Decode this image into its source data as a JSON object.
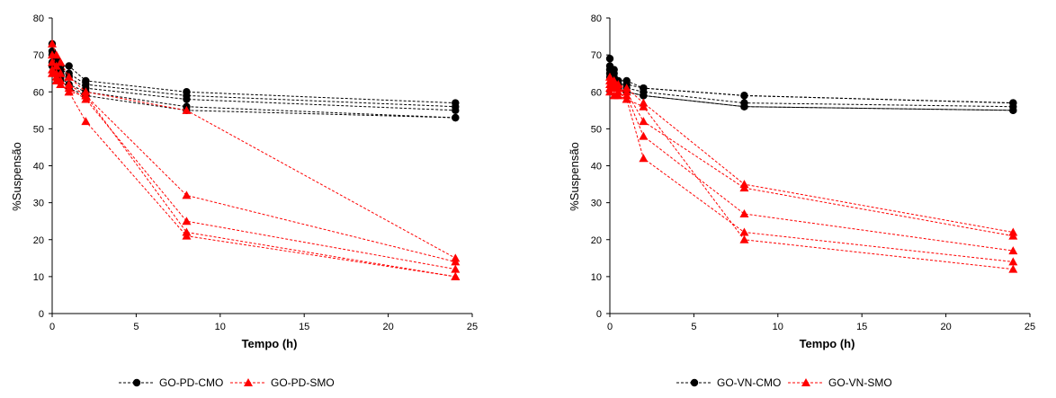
{
  "chart_data": [
    {
      "type": "scatter",
      "title": "",
      "xlabel": "Tempo (h)",
      "ylabel": "%Suspensão",
      "xlim": [
        0,
        25
      ],
      "ylim": [
        0,
        80
      ],
      "xticks": [
        "0",
        "5",
        "10",
        "15",
        "20",
        "25"
      ],
      "yticks": [
        "0",
        "10",
        "20",
        "30",
        "40",
        "50",
        "60",
        "70",
        "80"
      ],
      "grid": false,
      "legend_position": "bottom",
      "legend": [
        "GO-PD-CMO",
        "GO-PD-SMO"
      ],
      "series": [
        {
          "name": "GO-PD-CMO",
          "group": 0,
          "color": "#000000",
          "marker": "circle",
          "x": [
            0,
            0.25,
            0.5,
            1,
            2,
            8,
            24
          ],
          "y": [
            73,
            69,
            67,
            67,
            63,
            60,
            57
          ]
        },
        {
          "group": 0,
          "color": "#000000",
          "marker": "circle",
          "x": [
            0,
            0.25,
            0.5,
            1,
            2,
            8,
            24
          ],
          "y": [
            71,
            68,
            66,
            65,
            62,
            59,
            56
          ]
        },
        {
          "group": 0,
          "color": "#000000",
          "marker": "circle",
          "x": [
            0,
            0.25,
            0.5,
            1,
            2,
            8,
            24
          ],
          "y": [
            70,
            67,
            65,
            64,
            61,
            58,
            55
          ]
        },
        {
          "group": 0,
          "color": "#000000",
          "marker": "circle",
          "x": [
            0,
            0.25,
            0.5,
            1,
            2,
            8,
            24
          ],
          "y": [
            68,
            66,
            64,
            62,
            60,
            56,
            53
          ]
        },
        {
          "group": 0,
          "color": "#000000",
          "marker": "circle",
          "x": [
            0,
            0.25,
            0.5,
            1,
            2,
            8,
            24
          ],
          "y": [
            67,
            65,
            63,
            61,
            59,
            55,
            53
          ]
        },
        {
          "name": "GO-PD-SMO",
          "group": 1,
          "color": "#ff0000",
          "marker": "triangle",
          "x": [
            0,
            0.25,
            0.5,
            1,
            2,
            8,
            24
          ],
          "y": [
            73,
            70,
            68,
            64,
            60,
            55,
            15
          ]
        },
        {
          "group": 1,
          "color": "#ff0000",
          "marker": "triangle",
          "x": [
            0,
            0.25,
            0.5,
            1,
            2,
            8,
            24
          ],
          "y": [
            70,
            67,
            65,
            62,
            59,
            32,
            14
          ]
        },
        {
          "group": 1,
          "color": "#ff0000",
          "marker": "triangle",
          "x": [
            0,
            0.25,
            0.5,
            1,
            2,
            8,
            24
          ],
          "y": [
            68,
            65,
            63,
            61,
            58,
            25,
            12
          ]
        },
        {
          "group": 1,
          "color": "#ff0000",
          "marker": "triangle",
          "x": [
            0,
            0.25,
            0.5,
            1,
            2,
            8,
            24
          ],
          "y": [
            66,
            64,
            62,
            60,
            59,
            22,
            10
          ]
        },
        {
          "group": 1,
          "color": "#ff0000",
          "marker": "triangle",
          "x": [
            0,
            0.25,
            0.5,
            1,
            2,
            8,
            24
          ],
          "y": [
            65,
            63,
            62,
            60,
            52,
            21,
            10
          ]
        }
      ]
    },
    {
      "type": "scatter",
      "title": "",
      "xlabel": "Tempo (h)",
      "ylabel": "%Suspensão",
      "xlim": [
        0,
        25
      ],
      "ylim": [
        0,
        80
      ],
      "xticks": [
        "0",
        "5",
        "10",
        "15",
        "20",
        "25"
      ],
      "yticks": [
        "0",
        "10",
        "20",
        "30",
        "40",
        "50",
        "60",
        "70",
        "80"
      ],
      "grid": false,
      "legend_position": "bottom",
      "legend": [
        "GO-VN-CMO",
        "GO-VN-SMO"
      ],
      "series": [
        {
          "name": "GO-VN-CMO",
          "group": 0,
          "color": "#000000",
          "marker": "circle",
          "x": [
            0,
            0.25,
            0.5,
            1,
            2,
            8,
            24
          ],
          "y": [
            69,
            66,
            63,
            63,
            61,
            59,
            57
          ]
        },
        {
          "group": 0,
          "color": "#000000",
          "marker": "circle",
          "x": [
            0,
            0.25,
            0.5,
            1,
            2,
            8,
            24
          ],
          "y": [
            67,
            65,
            62,
            62,
            61,
            59,
            57
          ]
        },
        {
          "group": 0,
          "color": "#000000",
          "marker": "circle",
          "x": [
            0,
            0.25,
            0.5,
            1,
            2,
            8,
            24
          ],
          "y": [
            66,
            64,
            62,
            61,
            60,
            57,
            56
          ]
        },
        {
          "group": 0,
          "color": "#000000",
          "marker": "circle",
          "x": [
            0,
            0.25,
            0.5,
            1,
            2,
            8,
            24
          ],
          "y": [
            65,
            63,
            61,
            60,
            59,
            56,
            55
          ]
        },
        {
          "group": 0,
          "color": "#000000",
          "marker": "circle",
          "x": [
            0,
            0.25,
            0.5,
            1,
            2,
            8,
            24
          ],
          "y": [
            64,
            62,
            61,
            60,
            59,
            56,
            55
          ]
        },
        {
          "name": "GO-VN-SMO",
          "group": 1,
          "color": "#ff0000",
          "marker": "triangle",
          "x": [
            0,
            0.25,
            0.5,
            1,
            2,
            8,
            24
          ],
          "y": [
            64,
            63,
            62,
            61,
            57,
            35,
            22
          ]
        },
        {
          "group": 1,
          "color": "#ff0000",
          "marker": "triangle",
          "x": [
            0,
            0.25,
            0.5,
            1,
            2,
            8,
            24
          ],
          "y": [
            63,
            62,
            61,
            60,
            52,
            34,
            21
          ]
        },
        {
          "group": 1,
          "color": "#ff0000",
          "marker": "triangle",
          "x": [
            0,
            0.25,
            0.5,
            1,
            2,
            8,
            24
          ],
          "y": [
            62,
            62,
            61,
            59,
            48,
            27,
            17
          ]
        },
        {
          "group": 1,
          "color": "#ff0000",
          "marker": "triangle",
          "x": [
            0,
            0.25,
            0.5,
            1,
            2,
            8,
            24
          ],
          "y": [
            61,
            61,
            60,
            58,
            42,
            22,
            14
          ]
        },
        {
          "group": 1,
          "color": "#ff0000",
          "marker": "triangle",
          "x": [
            0,
            0.25,
            0.5,
            1,
            2,
            8,
            24
          ],
          "y": [
            60,
            59,
            59,
            58,
            56,
            20,
            12
          ]
        }
      ]
    }
  ]
}
